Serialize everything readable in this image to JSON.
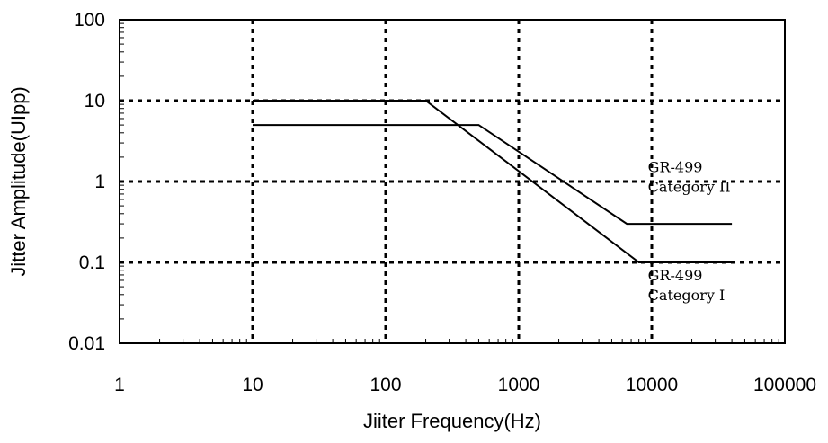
{
  "chart_data": {
    "type": "line",
    "title": "",
    "xlabel": "Jiiter Frequency(Hz)",
    "ylabel": "Jitter Amplitude(UIpp)",
    "xscale": "log",
    "yscale": "log",
    "xlim": [
      1,
      100000
    ],
    "ylim": [
      0.01,
      100
    ],
    "x_ticks": [
      "1",
      "10",
      "100",
      "1000",
      "10000",
      "100000"
    ],
    "y_ticks": [
      "100",
      "10",
      "1",
      "0.1",
      "0.01"
    ],
    "grid": true,
    "series": [
      {
        "name": "GR-499 Category I",
        "x": [
          10,
          200,
          8000,
          40000
        ],
        "y": [
          10,
          10,
          0.1,
          0.1
        ]
      },
      {
        "name": "GR-499 Category II",
        "x": [
          10,
          500,
          6500,
          40000
        ],
        "y": [
          5,
          5,
          0.3,
          0.3
        ]
      }
    ],
    "annotations": [
      {
        "lines": [
          "GR-499",
          "Category II"
        ],
        "anchor_x": 8000,
        "anchor_y": 1.3
      },
      {
        "lines": [
          "GR-499",
          "Category I"
        ],
        "anchor_x": 8000,
        "anchor_y": 0.06
      }
    ]
  }
}
